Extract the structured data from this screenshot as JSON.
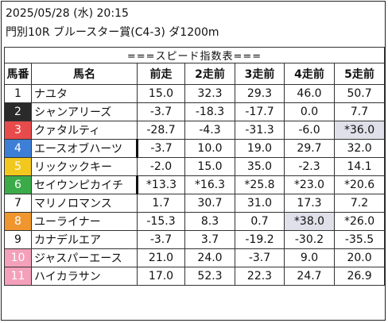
{
  "header": {
    "date_line": "2025/05/28 (水) 20:15",
    "race_line": "門別10R ブルースター賞(C4-3) ダ1200m"
  },
  "table": {
    "title": "===スピード指数表===",
    "columns": [
      "馬番",
      "馬名",
      "前走",
      "2走前",
      "3走前",
      "4走前",
      "5走前"
    ],
    "rows": [
      {
        "num": "1",
        "name": "ナユタ",
        "vals": [
          "15.0",
          "32.3",
          "29.3",
          "46.0",
          "50.7"
        ],
        "color": "#ffffff",
        "text_color": "#111111"
      },
      {
        "num": "2",
        "name": "シャンアリーズ",
        "vals": [
          "-3.7",
          "-18.3",
          "-17.7",
          "0.0",
          "7.7"
        ],
        "color": "#2a2a2a",
        "text_color": "#ffffff"
      },
      {
        "num": "3",
        "name": "クァタルティ",
        "vals": [
          "-28.7",
          "-4.3",
          "-31.3",
          "-6.0",
          "*36.0"
        ],
        "color": "#e84b4b",
        "text_color": "#ffffff"
      },
      {
        "num": "4",
        "name": "エースオブハーツ",
        "vals": [
          "-3.7",
          "10.0",
          "19.0",
          "29.7",
          "32.0"
        ],
        "color": "#3d7fd6",
        "text_color": "#ffffff"
      },
      {
        "num": "5",
        "name": "リックックキー",
        "vals": [
          "-2.0",
          "15.0",
          "35.0",
          "-2.3",
          "14.1"
        ],
        "color": "#f2c81f",
        "text_color": "#ffffff"
      },
      {
        "num": "6",
        "name": "セイウンピカイチ",
        "vals": [
          "*13.3",
          "*16.3",
          "*25.8",
          "*23.0",
          "*20.6"
        ],
        "color": "#3bab4a",
        "text_color": "#ffffff"
      },
      {
        "num": "7",
        "name": "マリノロマンス",
        "vals": [
          "1.7",
          "30.7",
          "31.0",
          "17.3",
          "7.2"
        ],
        "color": "#ffffff",
        "text_color": "#111111"
      },
      {
        "num": "8",
        "name": "ユーライナー",
        "vals": [
          "-15.3",
          "8.3",
          "0.7",
          "*38.0",
          "*26.0"
        ],
        "color": "#f0962e",
        "text_color": "#ffffff"
      },
      {
        "num": "9",
        "name": "カナデルエア",
        "vals": [
          "-3.7",
          "3.7",
          "-19.2",
          "-30.2",
          "-35.5"
        ],
        "color": "#ffffff",
        "text_color": "#111111"
      },
      {
        "num": "10",
        "name": "ジャスパーエース",
        "vals": [
          "21.0",
          "24.0",
          "-3.7",
          "9.0",
          "20.0"
        ],
        "color": "#f4a0bb",
        "text_color": "#ffffff"
      },
      {
        "num": "11",
        "name": "ハイカラサン",
        "vals": [
          "17.0",
          "52.3",
          "22.3",
          "24.7",
          "26.9"
        ],
        "color": "#f4a0bb",
        "text_color": "#ffffff"
      }
    ],
    "highlight_color": "#e0e0ea"
  }
}
